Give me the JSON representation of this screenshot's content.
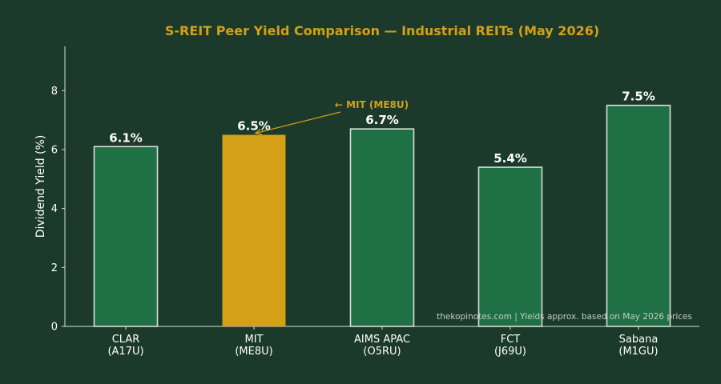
{
  "colors": {
    "background": "#1b3a2b",
    "bar": "#1f7044",
    "highlight": "#d4a017",
    "bar_edge": "#d9ded8",
    "text": "#ffffff",
    "title": "#d4a017",
    "footer": "#c2cbc4",
    "axis": "#d9ded8"
  },
  "chart_data": {
    "type": "bar",
    "title": "S-REIT Peer Yield Comparison — Industrial REITs (May 2026)",
    "ylabel": "Dividend Yield (%)",
    "ylim": [
      0,
      9.5
    ],
    "yticks": [
      0,
      2,
      4,
      6,
      8
    ],
    "categories": [
      {
        "line1": "CLAR",
        "line2": "(A17U)"
      },
      {
        "line1": "MIT",
        "line2": "(ME8U)"
      },
      {
        "line1": "AIMS APAC",
        "line2": "(O5RU)"
      },
      {
        "line1": "FCT",
        "line2": "(J69U)"
      },
      {
        "line1": "Sabana",
        "line2": "(M1GU)"
      }
    ],
    "values": [
      6.1,
      6.5,
      6.7,
      5.4,
      7.5
    ],
    "data_labels": [
      "6.1%",
      "6.5%",
      "6.7%",
      "5.4%",
      "7.5%"
    ],
    "highlight_index": 1,
    "annotation": {
      "text": "← MIT (ME8U)",
      "target_index": 1
    },
    "footer": "thekopinotes.com | Yields approx. based on May 2026 prices",
    "grid": false,
    "legend": "none"
  }
}
